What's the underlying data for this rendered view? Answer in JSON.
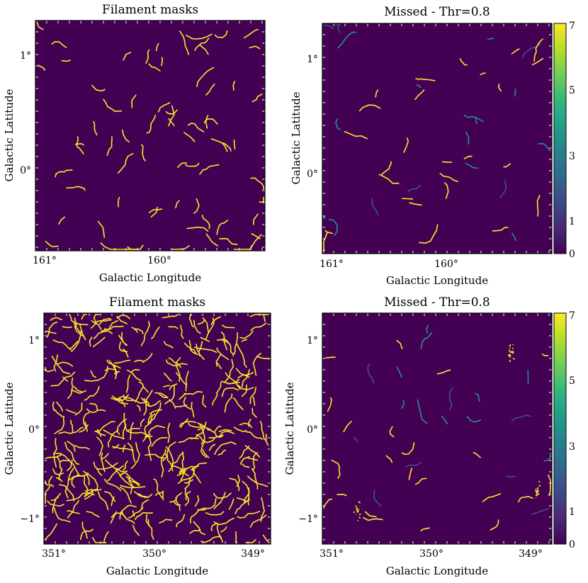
{
  "colors": {
    "background": "#440154",
    "filament": "#fde725",
    "missed_low": "#3b528b",
    "missed_mid": "#21918c"
  },
  "colorbar": {
    "ticks": [
      "0",
      "1",
      "3",
      "5",
      "7"
    ],
    "stops": [
      "#440154",
      "#482878",
      "#3e4989",
      "#31688e",
      "#26828e",
      "#1f9e89",
      "#35b779",
      "#6ece58",
      "#b5de2b",
      "#fde725"
    ]
  },
  "chart_data": [
    {
      "type": "heatmap",
      "title": "Filament masks",
      "xlabel": "Galactic Longitude",
      "ylabel": "Galactic Latitude",
      "xticks": [
        "161°",
        "160°"
      ],
      "yticks": [
        "1°",
        "0°"
      ],
      "xlim": [
        161.15,
        159.15
      ],
      "ylim": [
        -0.72,
        1.3
      ],
      "density": 70,
      "clusters": []
    },
    {
      "type": "heatmap",
      "title": "Missed - Thr=0.8",
      "xlabel": "Galactic Longitude",
      "ylabel": "Galactic Latitude",
      "xticks": [
        "161°",
        "160°"
      ],
      "yticks": [
        "1°",
        "0°"
      ],
      "xlim": [
        161.15,
        159.15
      ],
      "ylim": [
        -0.72,
        1.3
      ],
      "density": 45,
      "colorbar_ticks": [
        "0",
        "1",
        "3",
        "5",
        "7"
      ],
      "clusters": []
    },
    {
      "type": "heatmap",
      "title": "Filament masks",
      "xlabel": "Galactic Longitude",
      "ylabel": "Galactic Latitude",
      "xticks": [
        "351°",
        "350°",
        "349°"
      ],
      "yticks": [
        "1°",
        "0°",
        "−1°"
      ],
      "xlim": [
        351.1,
        348.65
      ],
      "ylim": [
        -1.3,
        1.3
      ],
      "density": 330,
      "clusters": []
    },
    {
      "type": "heatmap",
      "title": "Missed - Thr=0.8",
      "xlabel": "Galactic Longitude",
      "ylabel": "Galactic Latitude",
      "xticks": [
        "351°",
        "350°",
        "349°"
      ],
      "yticks": [
        "1°",
        "0°",
        "−1°"
      ],
      "xlim": [
        351.1,
        348.65
      ],
      "ylim": [
        -1.3,
        1.3
      ],
      "density": 40,
      "colorbar_ticks": [
        "0",
        "1",
        "3",
        "5",
        "7"
      ],
      "clusters": [
        {
          "lon": 349.08,
          "lat": 0.85
        },
        {
          "lon": 350.72,
          "lat": -0.93
        },
        {
          "lon": 348.8,
          "lat": -0.7
        }
      ]
    }
  ]
}
